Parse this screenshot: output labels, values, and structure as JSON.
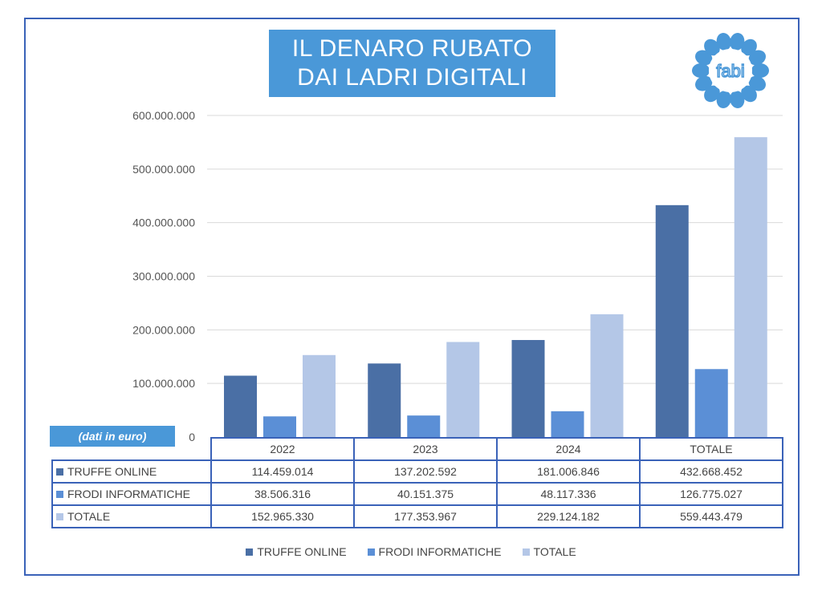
{
  "title": {
    "line1": "IL DENARO RUBATO",
    "line2": "DAI LADRI DIGITALI"
  },
  "logo_text": "fabi",
  "unit_note": "(dati in euro)",
  "chart_data": {
    "type": "bar",
    "categories": [
      "2022",
      "2023",
      "2024",
      "TOTALE"
    ],
    "series": [
      {
        "name": "TRUFFE ONLINE",
        "values": [
          114459014,
          137202592,
          181006846,
          432668452
        ],
        "color": "#4a6fa5",
        "labels": [
          "114.459.014",
          "137.202.592",
          "181.006.846",
          "432.668.452"
        ]
      },
      {
        "name": "FRODI INFORMATICHE",
        "values": [
          38506316,
          40151375,
          48117336,
          126775027
        ],
        "color": "#5b8fd6",
        "labels": [
          "38.506.316",
          "40.151.375",
          "48.117.336",
          "126.775.027"
        ]
      },
      {
        "name": "TOTALE",
        "values": [
          152965330,
          177353967,
          229124182,
          559443479
        ],
        "color": "#b4c7e7",
        "labels": [
          "152.965.330",
          "177.353.967",
          "229.124.182",
          "559.443.479"
        ]
      }
    ],
    "ylim": [
      0,
      600000000
    ],
    "yticks": [
      "0",
      "100.000.000",
      "200.000.000",
      "300.000.000",
      "400.000.000",
      "500.000.000",
      "600.000.000"
    ],
    "grid": true,
    "legend": "bottom",
    "data_table": true
  }
}
